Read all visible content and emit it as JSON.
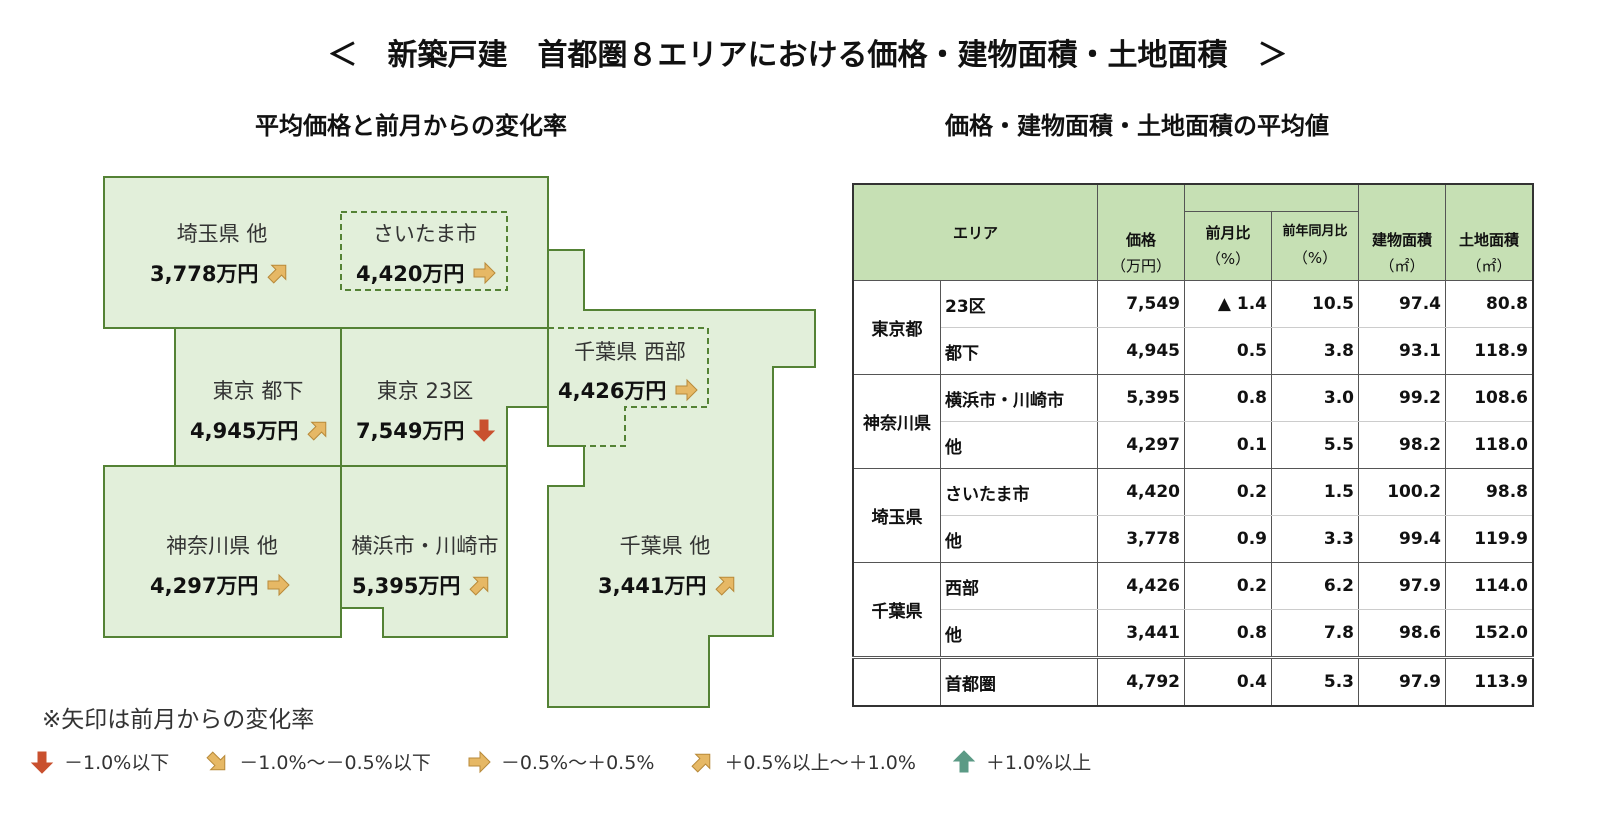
{
  "title": "＜　新築戸建　首都圏８エリアにおける価格・建物面積・土地面積　＞",
  "left_title": "平均価格と前月からの変化率",
  "right_title": "価格・建物面積・土地面積の平均値",
  "map": [
    {
      "name": "埼玉県 他",
      "price": "3,778万円",
      "arrow": "up-right"
    },
    {
      "name": "さいたま市",
      "price": "4,420万円",
      "arrow": "right"
    },
    {
      "name": "千葉県 西部",
      "price": "4,426万円",
      "arrow": "right"
    },
    {
      "name": "東京 都下",
      "price": "4,945万円",
      "arrow": "up-right"
    },
    {
      "name": "東京 23区",
      "price": "7,549万円",
      "arrow": "down"
    },
    {
      "name": "神奈川県 他",
      "price": "4,297万円",
      "arrow": "right"
    },
    {
      "name": "横浜市・川崎市",
      "price": "5,395万円",
      "arrow": "up-right"
    },
    {
      "name": "千葉県 他",
      "price": "3,441万円",
      "arrow": "up-right"
    }
  ],
  "note": "※矢印は前月からの変化率",
  "legend": [
    {
      "arrow": "down",
      "label": "－1.0%以下",
      "color": "#c9502e"
    },
    {
      "arrow": "down-right",
      "label": "－1.0%～－0.5%以下",
      "color": "#e6b865"
    },
    {
      "arrow": "right",
      "label": "－0.5%～＋0.5%",
      "color": "#e6b865"
    },
    {
      "arrow": "up-right",
      "label": "＋0.5%以上～＋1.0%",
      "color": "#e6b865"
    },
    {
      "arrow": "up",
      "label": "＋1.0%以上",
      "color": "#5b9a85"
    }
  ],
  "table": {
    "headers": {
      "area": "エリア",
      "price": "価格",
      "price_unit": "（万円）",
      "mom": "前月比",
      "mom_unit": "（%）",
      "yoy": "前年同月比",
      "yoy_unit": "（%）",
      "building": "建物面積",
      "building_unit": "（㎡）",
      "land": "土地面積",
      "land_unit": "（㎡）"
    },
    "groups": [
      {
        "pref": "東京都",
        "rows": [
          [
            "23区",
            "7,549",
            "▲ 1.4",
            "10.5",
            "97.4",
            "80.8"
          ],
          [
            "都下",
            "4,945",
            "0.5",
            "3.8",
            "93.1",
            "118.9"
          ]
        ]
      },
      {
        "pref": "神奈川県",
        "rows": [
          [
            "横浜市・川崎市",
            "5,395",
            "0.8",
            "3.0",
            "99.2",
            "108.6"
          ],
          [
            "他",
            "4,297",
            "0.1",
            "5.5",
            "98.2",
            "118.0"
          ]
        ]
      },
      {
        "pref": "埼玉県",
        "rows": [
          [
            "さいたま市",
            "4,420",
            "0.2",
            "1.5",
            "100.2",
            "98.8"
          ],
          [
            "他",
            "3,778",
            "0.9",
            "3.3",
            "99.4",
            "119.9"
          ]
        ]
      },
      {
        "pref": "千葉県",
        "rows": [
          [
            "西部",
            "4,426",
            "0.2",
            "6.2",
            "97.9",
            "114.0"
          ],
          [
            "他",
            "3,441",
            "0.8",
            "7.8",
            "98.6",
            "152.0"
          ]
        ]
      }
    ],
    "total": [
      "首都圏",
      "4,792",
      "0.4",
      "5.3",
      "97.9",
      "113.9"
    ]
  },
  "colors": {
    "region_fill": "#e2efda",
    "region_stroke": "#548235",
    "header_fill": "#c6e0b4"
  }
}
